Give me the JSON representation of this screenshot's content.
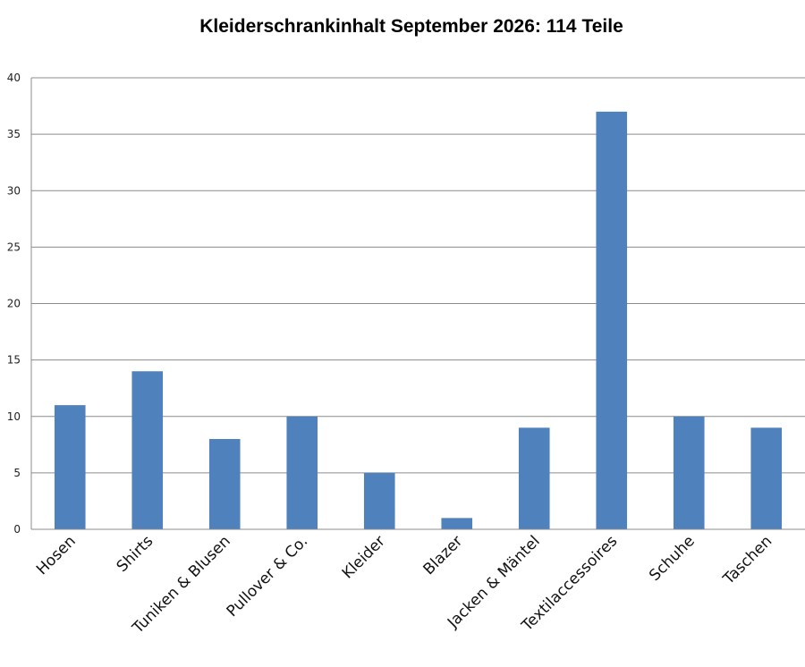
{
  "chart_data": {
    "type": "bar",
    "title": "Kleiderschrankinhalt September 2026: 114 Teile",
    "xlabel": "",
    "ylabel": "",
    "categories": [
      "Hosen",
      "Shirts",
      "Tuniken & Blusen",
      "Pullover & Co.",
      "Kleider",
      "Blazer",
      "Jacken & Mäntel",
      "Textilaccessoires",
      "Schuhe",
      "Taschen"
    ],
    "values": [
      11,
      14,
      8,
      10,
      5,
      1,
      9,
      37,
      10,
      9
    ],
    "ylim": [
      0,
      40
    ],
    "yticks": [
      "0",
      "5",
      "10",
      "15",
      "20",
      "25",
      "30",
      "35",
      "40"
    ],
    "grid": true,
    "legend": "none",
    "colors": {
      "bar": "#4f81bd",
      "grid": "#8c8c8c",
      "axis": "#8c8c8c"
    }
  }
}
